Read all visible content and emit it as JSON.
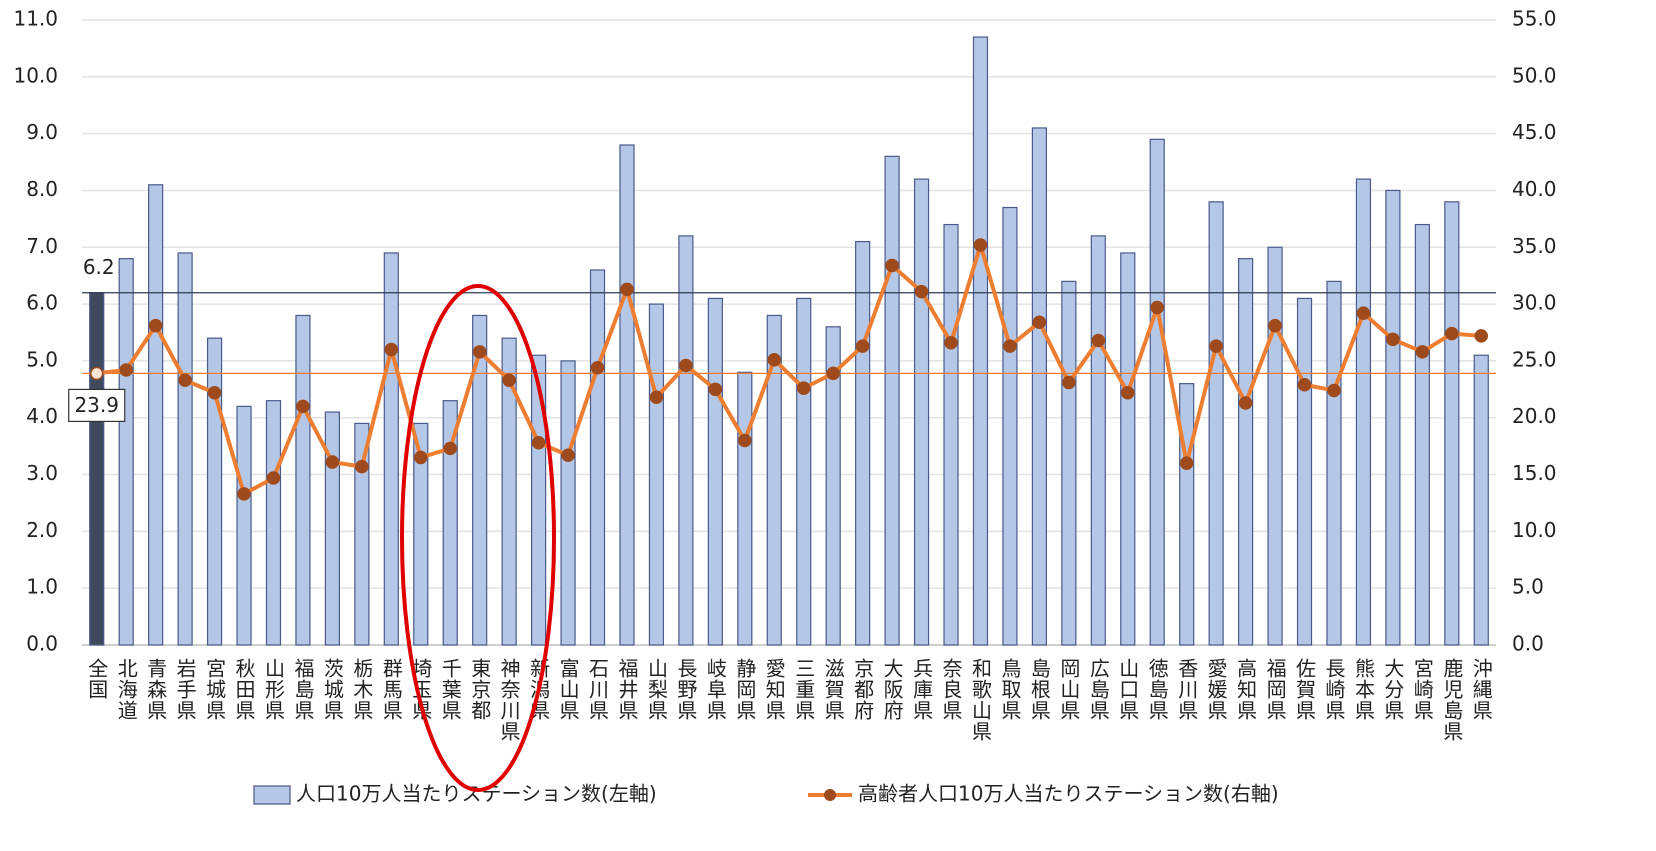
{
  "chart_data": {
    "type": "bar-line",
    "categories": [
      "全国",
      "北海道",
      "青森県",
      "岩手県",
      "宮城県",
      "秋田県",
      "山形県",
      "福島県",
      "茨城県",
      "栃木県",
      "群馬県",
      "埼玉県",
      "千葉県",
      "東京都",
      "神奈川県",
      "新潟県",
      "富山県",
      "石川県",
      "福井県",
      "山梨県",
      "長野県",
      "岐阜県",
      "静岡県",
      "愛知県",
      "三重県",
      "滋賀県",
      "京都府",
      "大阪府",
      "兵庫県",
      "奈良県",
      "和歌山県",
      "鳥取県",
      "島根県",
      "岡山県",
      "広島県",
      "山口県",
      "徳島県",
      "香川県",
      "愛媛県",
      "高知県",
      "福岡県",
      "佐賀県",
      "長崎県",
      "熊本県",
      "大分県",
      "宮崎県",
      "鹿児島県",
      "沖縄県"
    ],
    "series": [
      {
        "name": "人口10万人当たりステーション数(左軸)",
        "color": "#b4c7e7",
        "highlight_color": "#3f4a5e",
        "axis": "y",
        "values": [
          6.2,
          6.8,
          8.1,
          6.9,
          5.4,
          4.2,
          4.3,
          5.8,
          4.1,
          3.9,
          6.9,
          3.9,
          4.3,
          5.8,
          5.4,
          5.1,
          5.0,
          6.6,
          8.8,
          6.0,
          7.2,
          6.1,
          4.8,
          5.8,
          6.1,
          5.6,
          7.1,
          8.6,
          8.2,
          7.4,
          10.7,
          7.7,
          9.1,
          6.4,
          7.2,
          6.9,
          8.9,
          4.6,
          7.8,
          6.8,
          7.0,
          6.1,
          6.4,
          8.2,
          8.0,
          7.4,
          7.8,
          5.1
        ]
      },
      {
        "name": "高齢者人口10万人当たりステーション数(右軸)",
        "color": "#ed7d31",
        "axis": "y2",
        "values": [
          23.9,
          24.2,
          28.1,
          23.3,
          22.2,
          13.3,
          14.7,
          21.0,
          16.1,
          15.7,
          26.0,
          16.5,
          17.3,
          25.8,
          23.3,
          17.8,
          16.7,
          24.4,
          31.3,
          21.8,
          24.6,
          22.5,
          18.0,
          25.1,
          22.6,
          23.9,
          26.3,
          33.4,
          31.1,
          26.6,
          35.2,
          26.3,
          28.4,
          23.1,
          26.8,
          22.2,
          29.7,
          16.0,
          26.3,
          21.3,
          28.1,
          22.9,
          22.4,
          29.2,
          26.9,
          25.8,
          27.4,
          27.2
        ]
      }
    ],
    "ylim": [
      0,
      11
    ],
    "yticks": [
      {
        "value": 0,
        "label": "0.0"
      },
      {
        "value": 1,
        "label": "1.0"
      },
      {
        "value": 2,
        "label": "2.0"
      },
      {
        "value": 3,
        "label": "3.0"
      },
      {
        "value": 4,
        "label": "4.0"
      },
      {
        "value": 5,
        "label": "5.0"
      },
      {
        "value": 6,
        "label": "6.0"
      },
      {
        "value": 7,
        "label": "7.0"
      },
      {
        "value": 8,
        "label": "8.0"
      },
      {
        "value": 9,
        "label": "9.0"
      },
      {
        "value": 10,
        "label": "10.0"
      },
      {
        "value": 11,
        "label": "11.0"
      }
    ],
    "y2lim": [
      0,
      55
    ],
    "y2ticks": [
      {
        "value": 0,
        "label": "0.0"
      },
      {
        "value": 5,
        "label": "5.0"
      },
      {
        "value": 10,
        "label": "10.0"
      },
      {
        "value": 15,
        "label": "15.0"
      },
      {
        "value": 20,
        "label": "20.0"
      },
      {
        "value": 25,
        "label": "25.0"
      },
      {
        "value": 30,
        "label": "30.0"
      },
      {
        "value": 35,
        "label": "35.0"
      },
      {
        "value": 40,
        "label": "40.0"
      },
      {
        "value": 45,
        "label": "45.0"
      },
      {
        "value": 50,
        "label": "50.0"
      },
      {
        "value": 55,
        "label": "55.0"
      }
    ],
    "grid": true,
    "legend": "bottom"
  }
}
